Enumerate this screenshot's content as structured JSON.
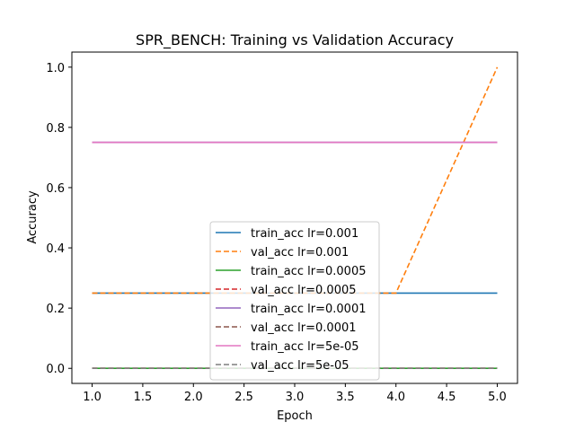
{
  "chart_data": {
    "type": "line",
    "title": "SPR_BENCH: Training vs Validation Accuracy",
    "xlabel": "Epoch",
    "ylabel": "Accuracy",
    "xlim": [
      0.8,
      5.2
    ],
    "ylim": [
      -0.05,
      1.05
    ],
    "xticks": [
      "1.0",
      "1.5",
      "2.0",
      "2.5",
      "3.0",
      "3.5",
      "4.0",
      "4.5",
      "5.0"
    ],
    "yticks": [
      "0.0",
      "0.2",
      "0.4",
      "0.6",
      "0.8",
      "1.0"
    ],
    "x": [
      1,
      2,
      3,
      4,
      5
    ],
    "legend_position": "lower center",
    "grid": false,
    "series": [
      {
        "name": "train_acc lr=0.001",
        "color": "#1f77b4",
        "dash": false,
        "values": [
          0.25,
          0.25,
          0.25,
          0.25,
          0.25
        ]
      },
      {
        "name": "val_acc lr=0.001",
        "color": "#ff7f0e",
        "dash": true,
        "values": [
          0.25,
          0.25,
          0.25,
          0.25,
          1.0
        ]
      },
      {
        "name": "train_acc lr=0.0005",
        "color": "#2ca02c",
        "dash": false,
        "values": [
          0.0,
          0.0,
          0.0,
          0.0,
          0.0
        ]
      },
      {
        "name": "val_acc lr=0.0005",
        "color": "#d62728",
        "dash": true,
        "values": [
          0.0,
          0.0,
          0.0,
          0.0,
          0.0
        ]
      },
      {
        "name": "train_acc lr=0.0001",
        "color": "#9467bd",
        "dash": false,
        "values": [
          0.75,
          0.75,
          0.75,
          0.75,
          0.75
        ]
      },
      {
        "name": "val_acc lr=0.0001",
        "color": "#8c564b",
        "dash": true,
        "values": [
          0.0,
          0.0,
          0.0,
          0.0,
          0.0
        ]
      },
      {
        "name": "train_acc lr=5e-05",
        "color": "#e377c2",
        "dash": false,
        "values": [
          0.75,
          0.75,
          0.75,
          0.75,
          0.75
        ]
      },
      {
        "name": "val_acc lr=5e-05",
        "color": "#7f7f7f",
        "dash": true,
        "values": [
          0.0,
          0.0,
          0.0,
          0.0,
          0.0
        ]
      }
    ]
  }
}
